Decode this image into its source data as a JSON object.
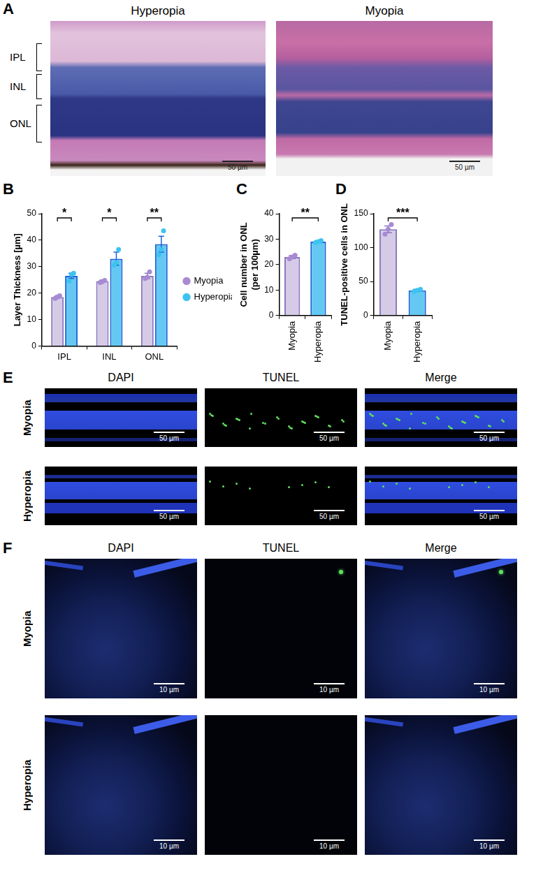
{
  "panel_a": {
    "panel": "A",
    "columns": [
      "Hyperopia",
      "Myopia"
    ],
    "layers": [
      "IPL",
      "INL",
      "ONL"
    ],
    "scale_bar": "50 µm"
  },
  "chart_data": [
    {
      "panel": "B",
      "type": "bar",
      "y_label": "Layer Thickness [µm]",
      "categories": [
        "IPL",
        "INL",
        "ONL"
      ],
      "series": [
        {
          "name": "Myopia",
          "color": "#d5cbe7",
          "values": [
            18.5,
            24.5,
            26.5
          ],
          "errors": [
            0.5,
            0.4,
            1.0
          ],
          "points": [
            [
              18,
              18.5,
              19
            ],
            [
              24,
              24.3,
              24.8
            ],
            [
              25.5,
              26,
              28
            ]
          ]
        },
        {
          "name": "Hyperopia",
          "color": "#64c8f3",
          "values": [
            26.5,
            33,
            38.5
          ],
          "errors": [
            1.0,
            2.5,
            3.0
          ],
          "points": [
            [
              24.5,
              27,
              27.5
            ],
            [
              30.5,
              31.5,
              36.5
            ],
            [
              34.5,
              36.5,
              43.5
            ]
          ]
        }
      ],
      "ylim": [
        0,
        50
      ],
      "yticks": [
        0,
        10,
        20,
        30,
        40,
        50
      ],
      "grid": false,
      "legend": "right",
      "significance": [
        {
          "category": "IPL",
          "label": "*"
        },
        {
          "category": "INL",
          "label": "*"
        },
        {
          "category": "ONL",
          "label": "**"
        }
      ]
    },
    {
      "panel": "C",
      "type": "bar",
      "y_label": [
        "Cell number in ONL",
        "(per 100µm)"
      ],
      "categories": [
        "Myopia",
        "Hyperopia"
      ],
      "values": [
        23,
        29
      ],
      "errors": [
        0.6,
        0.4
      ],
      "points": [
        [
          22.3,
          23,
          23.7
        ],
        [
          28.6,
          29,
          29.4
        ]
      ],
      "colors": [
        "#d5cbe7",
        "#64c8f3"
      ],
      "ylim": [
        0,
        40
      ],
      "yticks": [
        0,
        10,
        20,
        30,
        40
      ],
      "grid": false,
      "significance": [
        {
          "label": "**"
        }
      ]
    },
    {
      "panel": "D",
      "type": "bar",
      "y_label": "TUNEL-positive cells in ONL",
      "categories": [
        "Myopia",
        "Hyperopia"
      ],
      "values": [
        127,
        37
      ],
      "errors": [
        5,
        1.5
      ],
      "points": [
        [
          120,
          127,
          134
        ],
        [
          35.5,
          37,
          38.5
        ]
      ],
      "colors": [
        "#d5cbe7",
        "#64c8f3"
      ],
      "ylim": [
        0,
        150
      ],
      "yticks": [
        0,
        50,
        100,
        150
      ],
      "grid": false,
      "significance": [
        {
          "label": "***"
        }
      ]
    }
  ],
  "panel_e": {
    "panel": "E",
    "columns": [
      "DAPI",
      "TUNEL",
      "Merge"
    ],
    "rows": [
      "Myopia",
      "Hyperopia"
    ],
    "scale_bar": "50 µm"
  },
  "panel_f": {
    "panel": "F",
    "columns": [
      "DAPI",
      "TUNEL",
      "Merge"
    ],
    "rows": [
      "Myopia",
      "Hyperopia"
    ],
    "scale_bar": "10 µm"
  }
}
